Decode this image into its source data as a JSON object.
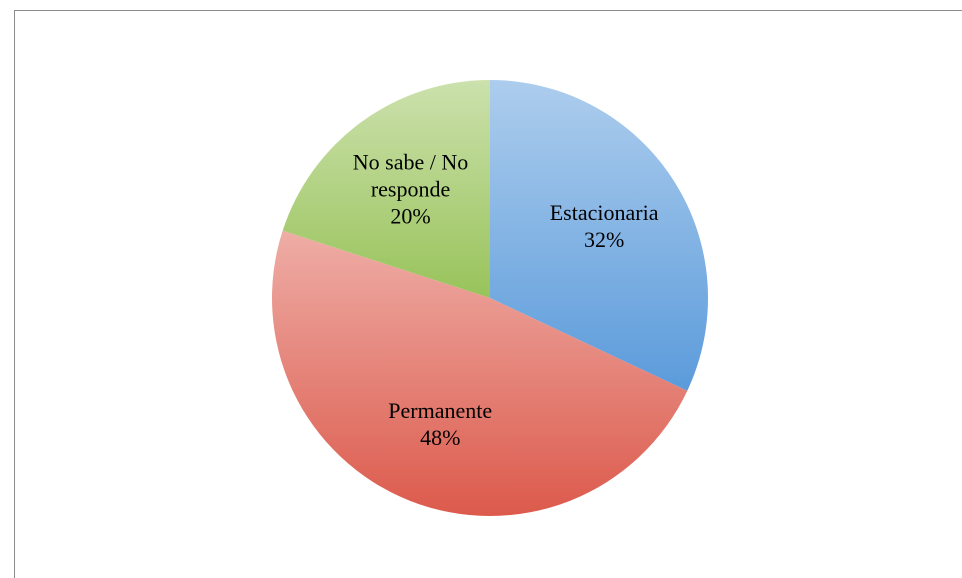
{
  "chart_data": {
    "type": "pie",
    "categories": [
      "Estacionaria",
      "Permanente",
      "No sabe / No responde"
    ],
    "values": [
      32,
      48,
      20
    ],
    "value_labels": [
      "32%",
      "48%",
      "20%"
    ],
    "colors": [
      "#5b9bdb",
      "#dc5a4c",
      "#98c35a"
    ]
  }
}
